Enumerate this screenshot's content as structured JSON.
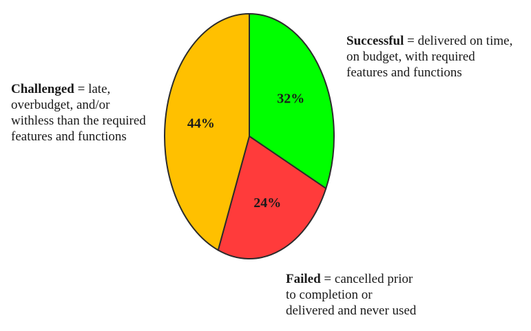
{
  "chart_data": {
    "type": "pie",
    "title": "",
    "slices": [
      {
        "name": "Successful",
        "value": 32,
        "label": "32%",
        "color": "#00ff00"
      },
      {
        "name": "Failed",
        "value": 24,
        "label": "24%",
        "color": "#ff3b3b"
      },
      {
        "name": "Challenged",
        "value": 44,
        "label": "44%",
        "color": "#ffc000"
      }
    ],
    "annotations": {
      "successful": {
        "term": "Successful",
        "separator": " = delivered on time,",
        "lines": [
          "on budget, with required",
          "features and functions"
        ]
      },
      "challenged": {
        "term": "Challenged",
        "separator": " = late,",
        "lines": [
          "overbudget, and/or",
          "withless than the required",
          "features and functions"
        ]
      },
      "failed": {
        "term": "Failed",
        "separator": " = cancelled prior",
        "lines": [
          "to completion or",
          "delivered and never used"
        ]
      }
    }
  }
}
